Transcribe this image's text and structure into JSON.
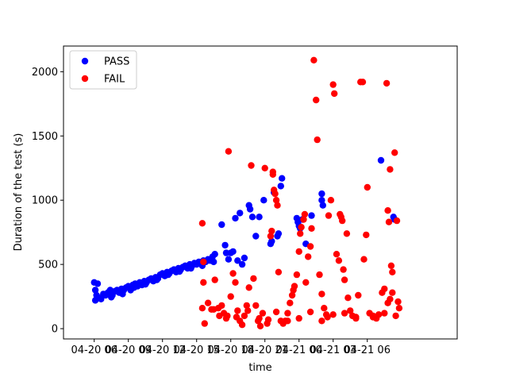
{
  "chart_data": {
    "type": "scatter",
    "title": "",
    "xlabel": "time",
    "ylabel": "Duration of the test (s)",
    "x_unit": "hours",
    "xlim": [
      -2.7,
      31.9
    ],
    "ylim": [
      -80,
      2200
    ],
    "x_ticks": [
      {
        "value": 0,
        "label": "04-20 06"
      },
      {
        "value": 3,
        "label": "04-20 09"
      },
      {
        "value": 6,
        "label": "04-20 12"
      },
      {
        "value": 9,
        "label": "04-20 15"
      },
      {
        "value": 12,
        "label": "04-20 18"
      },
      {
        "value": 15,
        "label": "04-20 21"
      },
      {
        "value": 18,
        "label": "04-21 00"
      },
      {
        "value": 21,
        "label": "04-21 03"
      },
      {
        "value": 24,
        "label": "04-21 06"
      }
    ],
    "y_ticks": [
      0,
      500,
      1000,
      1500,
      2000
    ],
    "legend": {
      "position": "top-left"
    },
    "colors": {
      "PASS": "#0000ff",
      "FAIL": "#ff0000"
    },
    "series": [
      {
        "name": "PASS",
        "points": [
          [
            0.0,
            360
          ],
          [
            0.1,
            300
          ],
          [
            0.1,
            220
          ],
          [
            0.2,
            260
          ],
          [
            0.4,
            240
          ],
          [
            0.6,
            230
          ],
          [
            0.8,
            270
          ],
          [
            1.0,
            260
          ],
          [
            1.2,
            280
          ],
          [
            1.4,
            300
          ],
          [
            1.6,
            260
          ],
          [
            1.8,
            290
          ],
          [
            2.0,
            300
          ],
          [
            2.2,
            280
          ],
          [
            2.4,
            310
          ],
          [
            2.6,
            300
          ],
          [
            2.8,
            320
          ],
          [
            3.0,
            330
          ],
          [
            3.2,
            300
          ],
          [
            3.4,
            340
          ],
          [
            3.6,
            350
          ],
          [
            3.8,
            330
          ],
          [
            4.0,
            360
          ],
          [
            4.2,
            340
          ],
          [
            4.4,
            370
          ],
          [
            4.6,
            360
          ],
          [
            4.8,
            380
          ],
          [
            5.0,
            390
          ],
          [
            5.2,
            370
          ],
          [
            5.4,
            400
          ],
          [
            5.6,
            390
          ],
          [
            5.8,
            420
          ],
          [
            6.0,
            430
          ],
          [
            6.2,
            410
          ],
          [
            6.4,
            440
          ],
          [
            6.6,
            430
          ],
          [
            6.8,
            450
          ],
          [
            7.0,
            460
          ],
          [
            7.2,
            440
          ],
          [
            7.4,
            470
          ],
          [
            7.6,
            460
          ],
          [
            7.8,
            480
          ],
          [
            8.0,
            490
          ],
          [
            8.2,
            470
          ],
          [
            8.4,
            500
          ],
          [
            8.6,
            490
          ],
          [
            8.8,
            510
          ],
          [
            9.0,
            500
          ],
          [
            9.2,
            520
          ],
          [
            9.4,
            510
          ],
          [
            9.6,
            530
          ],
          [
            9.8,
            520
          ],
          [
            10.0,
            540
          ],
          [
            10.2,
            530
          ],
          [
            10.4,
            560
          ],
          [
            10.6,
            580
          ],
          [
            11.2,
            810
          ],
          [
            11.5,
            650
          ],
          [
            11.6,
            590
          ],
          [
            11.8,
            540
          ],
          [
            12.0,
            590
          ],
          [
            12.2,
            600
          ],
          [
            12.4,
            860
          ],
          [
            12.6,
            530
          ],
          [
            12.8,
            900
          ],
          [
            13.0,
            500
          ],
          [
            13.2,
            550
          ],
          [
            13.6,
            960
          ],
          [
            13.7,
            930
          ],
          [
            13.9,
            870
          ],
          [
            14.2,
            720
          ],
          [
            14.5,
            870
          ],
          [
            14.9,
            1000
          ],
          [
            15.5,
            660
          ],
          [
            15.6,
            680
          ],
          [
            15.8,
            1060
          ],
          [
            16.1,
            720
          ],
          [
            16.2,
            740
          ],
          [
            16.4,
            1110
          ],
          [
            16.5,
            1170
          ],
          [
            17.8,
            860
          ],
          [
            17.9,
            830
          ],
          [
            18.0,
            800
          ],
          [
            18.1,
            780
          ],
          [
            18.3,
            850
          ],
          [
            18.6,
            660
          ],
          [
            19.1,
            880
          ],
          [
            20.0,
            1050
          ],
          [
            20.0,
            1000
          ],
          [
            20.1,
            960
          ],
          [
            25.2,
            1310
          ],
          [
            26.3,
            870
          ],
          [
            26.4,
            850
          ],
          [
            0.3,
            350
          ],
          [
            1.5,
            245
          ],
          [
            2.5,
            270
          ],
          [
            3.5,
            320
          ],
          [
            4.5,
            345
          ],
          [
            5.5,
            380
          ],
          [
            6.5,
            420
          ],
          [
            7.5,
            445
          ],
          [
            8.5,
            470
          ],
          [
            9.5,
            490
          ],
          [
            10.5,
            520
          ]
        ]
      },
      {
        "name": "FAIL",
        "points": [
          [
            9.5,
            820
          ],
          [
            9.6,
            520
          ],
          [
            9.6,
            360
          ],
          [
            9.5,
            160
          ],
          [
            9.7,
            40
          ],
          [
            10.0,
            200
          ],
          [
            10.3,
            150
          ],
          [
            10.6,
            380
          ],
          [
            10.9,
            160
          ],
          [
            11.2,
            180
          ],
          [
            11.4,
            120
          ],
          [
            11.6,
            80
          ],
          [
            11.7,
            100
          ],
          [
            11.8,
            1380
          ],
          [
            12.0,
            250
          ],
          [
            12.2,
            430
          ],
          [
            12.4,
            360
          ],
          [
            12.6,
            140
          ],
          [
            12.8,
            60
          ],
          [
            13.0,
            30
          ],
          [
            13.2,
            100
          ],
          [
            13.4,
            180
          ],
          [
            13.6,
            320
          ],
          [
            13.8,
            1270
          ],
          [
            14.0,
            390
          ],
          [
            14.2,
            180
          ],
          [
            14.4,
            60
          ],
          [
            14.6,
            20
          ],
          [
            14.8,
            120
          ],
          [
            15.0,
            1250
          ],
          [
            15.3,
            70
          ],
          [
            15.5,
            720
          ],
          [
            15.6,
            760
          ],
          [
            15.7,
            1220
          ],
          [
            15.7,
            1200
          ],
          [
            15.8,
            1080
          ],
          [
            15.9,
            1050
          ],
          [
            16.0,
            1000
          ],
          [
            16.1,
            960
          ],
          [
            16.2,
            440
          ],
          [
            16.4,
            60
          ],
          [
            16.6,
            40
          ],
          [
            16.8,
            60
          ],
          [
            17.0,
            120
          ],
          [
            17.2,
            200
          ],
          [
            17.4,
            260
          ],
          [
            17.5,
            300
          ],
          [
            17.6,
            330
          ],
          [
            17.8,
            420
          ],
          [
            18.0,
            600
          ],
          [
            18.1,
            740
          ],
          [
            18.2,
            790
          ],
          [
            18.4,
            850
          ],
          [
            18.5,
            890
          ],
          [
            18.6,
            360
          ],
          [
            18.8,
            560
          ],
          [
            19.0,
            640
          ],
          [
            19.1,
            780
          ],
          [
            19.3,
            2090
          ],
          [
            19.5,
            1780
          ],
          [
            19.6,
            1470
          ],
          [
            19.8,
            420
          ],
          [
            20.0,
            270
          ],
          [
            20.2,
            160
          ],
          [
            20.4,
            110
          ],
          [
            20.5,
            90
          ],
          [
            20.6,
            880
          ],
          [
            20.8,
            1000
          ],
          [
            21.0,
            1900
          ],
          [
            21.1,
            1830
          ],
          [
            21.3,
            580
          ],
          [
            21.5,
            530
          ],
          [
            21.6,
            890
          ],
          [
            21.7,
            870
          ],
          [
            21.8,
            840
          ],
          [
            21.9,
            460
          ],
          [
            22.0,
            380
          ],
          [
            22.2,
            740
          ],
          [
            22.3,
            240
          ],
          [
            22.5,
            140
          ],
          [
            22.7,
            100
          ],
          [
            23.0,
            80
          ],
          [
            23.2,
            260
          ],
          [
            23.4,
            1920
          ],
          [
            23.6,
            1920
          ],
          [
            23.7,
            540
          ],
          [
            23.9,
            730
          ],
          [
            24.0,
            1100
          ],
          [
            24.2,
            120
          ],
          [
            24.5,
            90
          ],
          [
            24.8,
            80
          ],
          [
            25.0,
            110
          ],
          [
            25.3,
            280
          ],
          [
            25.5,
            310
          ],
          [
            25.7,
            1910
          ],
          [
            25.8,
            920
          ],
          [
            25.9,
            830
          ],
          [
            26.0,
            1240
          ],
          [
            26.1,
            490
          ],
          [
            26.2,
            440
          ],
          [
            26.4,
            1370
          ],
          [
            26.6,
            840
          ],
          [
            26.7,
            210
          ],
          [
            26.8,
            160
          ],
          [
            26.5,
            100
          ],
          [
            26.2,
            280
          ],
          [
            26.0,
            230
          ],
          [
            25.8,
            200
          ],
          [
            10.5,
            150
          ],
          [
            11.0,
            100
          ],
          [
            12.5,
            90
          ],
          [
            13.5,
            140
          ],
          [
            14.5,
            80
          ],
          [
            15.2,
            40
          ],
          [
            16.0,
            130
          ],
          [
            17.0,
            60
          ],
          [
            18.0,
            80
          ],
          [
            19.0,
            130
          ],
          [
            20.0,
            60
          ],
          [
            21.0,
            110
          ],
          [
            22.0,
            120
          ],
          [
            23.0,
            90
          ],
          [
            24.5,
            100
          ],
          [
            25.5,
            120
          ]
        ]
      }
    ]
  }
}
